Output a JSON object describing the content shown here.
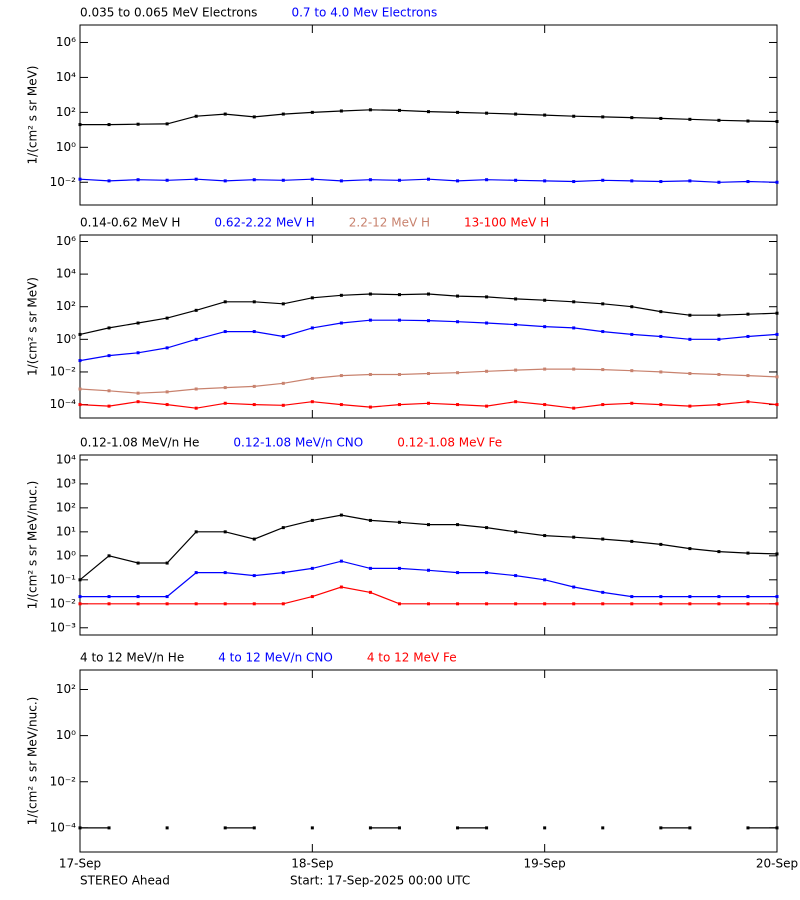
{
  "chart_data": [
    {
      "type": "scatter",
      "log_y": true,
      "y_label": "1/(cm² s sr MeV)",
      "xlim": [
        0,
        3
      ],
      "ylim": [
        0.0005,
        10000000
      ],
      "yticks": [
        {
          "value": 0.01,
          "label": "10⁻²"
        },
        {
          "value": 1,
          "label": "10⁰"
        },
        {
          "value": 100,
          "label": "10²"
        },
        {
          "value": 10000,
          "label": "10⁴"
        },
        {
          "value": 1000000,
          "label": "10⁶"
        }
      ],
      "x": [
        0,
        0.125,
        0.25,
        0.375,
        0.5,
        0.625,
        0.75,
        0.875,
        1,
        1.125,
        1.25,
        1.375,
        1.5,
        1.625,
        1.75,
        1.875,
        2,
        2.125,
        2.25,
        2.375,
        2.5,
        2.625,
        2.75,
        2.875,
        3
      ],
      "series": [
        {
          "name": "0.035 to 0.065 MeV Electrons",
          "color": "#000000",
          "values": [
            20,
            20,
            21,
            22,
            60,
            80,
            55,
            80,
            100,
            120,
            140,
            130,
            110,
            100,
            90,
            80,
            70,
            60,
            55,
            50,
            45,
            40,
            35,
            32,
            30
          ]
        },
        {
          "name": "0.7 to 4.0 Mev Electrons",
          "color": "#0000ff",
          "values": [
            0.015,
            0.012,
            0.014,
            0.013,
            0.015,
            0.012,
            0.014,
            0.013,
            0.015,
            0.012,
            0.014,
            0.013,
            0.015,
            0.012,
            0.014,
            0.013,
            0.012,
            0.011,
            0.013,
            0.012,
            0.011,
            0.012,
            0.01,
            0.011,
            0.01
          ]
        }
      ]
    },
    {
      "type": "scatter",
      "log_y": true,
      "y_label": "1/(cm² s sr MeV)",
      "xlim": [
        0,
        3
      ],
      "ylim": [
        1.5e-05,
        2500000
      ],
      "yticks": [
        {
          "value": 0.0001,
          "label": "10⁻⁴"
        },
        {
          "value": 0.01,
          "label": "10⁻²"
        },
        {
          "value": 1,
          "label": "10⁰"
        },
        {
          "value": 100,
          "label": "10²"
        },
        {
          "value": 10000,
          "label": "10⁴"
        },
        {
          "value": 1000000,
          "label": "10⁶"
        }
      ],
      "x": [
        0,
        0.125,
        0.25,
        0.375,
        0.5,
        0.625,
        0.75,
        0.875,
        1,
        1.125,
        1.25,
        1.375,
        1.5,
        1.625,
        1.75,
        1.875,
        2,
        2.125,
        2.25,
        2.375,
        2.5,
        2.625,
        2.75,
        2.875,
        3
      ],
      "series": [
        {
          "name": "0.14-0.62 MeV H",
          "color": "#000000",
          "values": [
            2,
            5,
            10,
            20,
            60,
            200,
            200,
            150,
            350,
            500,
            600,
            550,
            600,
            450,
            400,
            300,
            250,
            200,
            150,
            100,
            50,
            30,
            30,
            35,
            40
          ]
        },
        {
          "name": "0.62-2.22 MeV H",
          "color": "#0000ff",
          "values": [
            0.05,
            0.1,
            0.15,
            0.3,
            1,
            3,
            3,
            1.5,
            5,
            10,
            15,
            15,
            14,
            12,
            10,
            8,
            6,
            5,
            3,
            2,
            1.5,
            1,
            1,
            1.5,
            2
          ]
        },
        {
          "name": "2.2-12 MeV H",
          "color": "#c8826e",
          "values": [
            0.0009,
            0.0007,
            0.0005,
            0.0006,
            0.0009,
            0.0011,
            0.0013,
            0.002,
            0.004,
            0.006,
            0.007,
            0.007,
            0.008,
            0.009,
            0.011,
            0.013,
            0.015,
            0.015,
            0.014,
            0.012,
            0.01,
            0.008,
            0.007,
            0.006,
            0.005
          ]
        },
        {
          "name": "13-100 MeV H",
          "color": "#ff0000",
          "values": [
            0.0001,
            8e-05,
            0.00015,
            0.0001,
            6e-05,
            0.00012,
            0.0001,
            9e-05,
            0.00015,
            0.0001,
            7e-05,
            0.0001,
            0.00012,
            0.0001,
            8e-05,
            0.00015,
            0.0001,
            6e-05,
            0.0001,
            0.00012,
            0.0001,
            8e-05,
            0.0001,
            0.00015,
            0.0001
          ]
        }
      ]
    },
    {
      "type": "scatter",
      "log_y": true,
      "y_label": "1/(cm² s sr MeV/nuc.)",
      "xlim": [
        0,
        3
      ],
      "ylim": [
        0.0005,
        16000
      ],
      "yticks": [
        {
          "value": 0.001,
          "label": "10⁻³"
        },
        {
          "value": 0.01,
          "label": "10⁻²"
        },
        {
          "value": 0.1,
          "label": "10⁻¹"
        },
        {
          "value": 1,
          "label": "10⁰"
        },
        {
          "value": 10,
          "label": "10¹"
        },
        {
          "value": 100,
          "label": "10²"
        },
        {
          "value": 1000,
          "label": "10³"
        },
        {
          "value": 10000,
          "label": "10⁴"
        }
      ],
      "x": [
        0,
        0.125,
        0.25,
        0.375,
        0.5,
        0.625,
        0.75,
        0.875,
        1,
        1.125,
        1.25,
        1.375,
        1.5,
        1.625,
        1.75,
        1.875,
        2,
        2.125,
        2.25,
        2.375,
        2.5,
        2.625,
        2.75,
        2.875,
        3
      ],
      "series": [
        {
          "name": "0.12-1.08 MeV/n He",
          "color": "#000000",
          "values": [
            0.1,
            1,
            0.5,
            0.5,
            10,
            10,
            5,
            15,
            30,
            50,
            30,
            25,
            20,
            20,
            15,
            10,
            7,
            6,
            5,
            4,
            3,
            2,
            1.5,
            1.3,
            1.2
          ]
        },
        {
          "name": "0.12-1.08 MeV/n CNO",
          "color": "#0000ff",
          "values": [
            0.02,
            0.02,
            0.02,
            0.02,
            0.2,
            0.2,
            0.15,
            0.2,
            0.3,
            0.6,
            0.3,
            0.3,
            0.25,
            0.2,
            0.2,
            0.15,
            0.1,
            0.05,
            0.03,
            0.02,
            0.02,
            0.02,
            0.02,
            0.02,
            0.02
          ]
        },
        {
          "name": "0.12-1.08 MeV Fe",
          "color": "#ff0000",
          "values": [
            0.01,
            0.01,
            0.01,
            0.01,
            0.01,
            0.01,
            0.01,
            0.01,
            0.02,
            0.05,
            0.03,
            0.01,
            0.01,
            0.01,
            0.01,
            0.01,
            0.01,
            0.01,
            0.01,
            0.01,
            0.01,
            0.01,
            0.01,
            0.01,
            0.01
          ]
        }
      ]
    },
    {
      "type": "scatter",
      "log_y": true,
      "y_label": "1/(cm² s sr MeV/nuc.)",
      "xlim": [
        0,
        3
      ],
      "ylim": [
        9e-06,
        700
      ],
      "xticks": [
        {
          "value": 0,
          "label": "17-Sep"
        },
        {
          "value": 1,
          "label": "18-Sep"
        },
        {
          "value": 2,
          "label": "19-Sep"
        },
        {
          "value": 3,
          "label": "20-Sep"
        }
      ],
      "yticks": [
        {
          "value": 0.0001,
          "label": "10⁻⁴"
        },
        {
          "value": 0.01,
          "label": "10⁻²"
        },
        {
          "value": 1,
          "label": "10⁰"
        },
        {
          "value": 100,
          "label": "10²"
        }
      ],
      "x": [
        0,
        0.125,
        0.25,
        0.375,
        0.5,
        0.625,
        0.75,
        0.875,
        1,
        1.125,
        1.25,
        1.375,
        1.5,
        1.625,
        1.75,
        1.875,
        2,
        2.125,
        2.25,
        2.375,
        2.5,
        2.625,
        2.75,
        2.875,
        3
      ],
      "series": [
        {
          "name": "4 to 12 MeV/n He",
          "color": "#000000",
          "values": [
            0.0001,
            0.0001,
            null,
            0.0001,
            null,
            0.0001,
            0.0001,
            null,
            0.0001,
            null,
            0.0001,
            0.0001,
            null,
            0.0001,
            0.0001,
            null,
            0.0001,
            null,
            0.0001,
            null,
            0.0001,
            0.0001,
            null,
            0.0001,
            0.0001
          ]
        },
        {
          "name": "4 to 12 MeV/n CNO",
          "color": "#0000ff",
          "values": [
            null,
            null,
            null,
            null,
            null,
            null,
            null,
            null,
            null,
            null,
            null,
            null,
            null,
            null,
            null,
            null,
            null,
            null,
            null,
            null,
            null,
            null,
            null,
            null,
            null
          ]
        },
        {
          "name": "4 to 12 MeV Fe",
          "color": "#ff0000",
          "values": [
            null,
            null,
            null,
            null,
            null,
            null,
            null,
            null,
            null,
            null,
            null,
            null,
            null,
            null,
            null,
            null,
            null,
            null,
            null,
            null,
            null,
            null,
            null,
            null,
            null
          ]
        }
      ]
    }
  ],
  "footer": {
    "left": "STEREO Ahead",
    "start": "Start: 17-Sep-2025 00:00 UTC"
  }
}
